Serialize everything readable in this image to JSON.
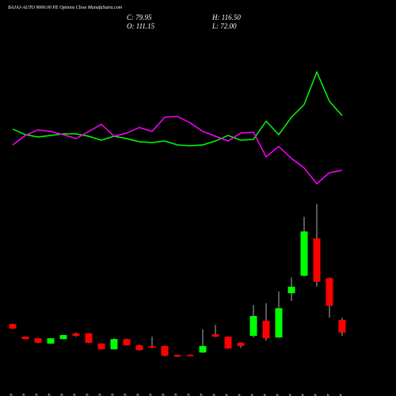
{
  "chart_data": {
    "type": "candlestick",
    "title": "BAJAJ-AUTO 9000.00 PE Options Close MunafaSutra.com",
    "stats": [
      "C: 79.95",
      "H: 116.50",
      "O: 111.15",
      "L: 72.00"
    ],
    "categories": [
      "06 Feb",
      "07 Feb",
      "10 Feb",
      "11 Feb",
      "12 Feb",
      "13 Feb",
      "14 Feb",
      "17 Feb",
      "18 Feb",
      "19 Feb",
      "20 Feb",
      "21 Feb",
      "24 Feb",
      "25 Feb",
      "27 Feb",
      "28 Feb",
      "03 Mar",
      "04 Mar",
      "05 Mar",
      "06 Mar",
      "07 Mar",
      "10 Mar",
      "11 Mar",
      "12 Mar",
      "13 Mar",
      "17 Mar",
      "18 Mar"
    ],
    "open": [
      101,
      70,
      66,
      53,
      64,
      78,
      78,
      53,
      39,
      64,
      49,
      47,
      47,
      25,
      25,
      31,
      76,
      70,
      55,
      72,
      109,
      68,
      177,
      220,
      312,
      214,
      111.15
    ],
    "high": [
      102,
      71,
      67,
      67,
      75,
      80,
      79,
      54,
      66,
      65,
      50,
      70,
      48,
      26,
      26,
      88,
      99,
      71,
      56,
      148,
      152,
      181,
      216,
      365,
      396,
      216,
      116.5
    ],
    "low": [
      89,
      63,
      54,
      52,
      63,
      70,
      54,
      38,
      38,
      48,
      36,
      42,
      22,
      20,
      22,
      30,
      69,
      40,
      43,
      68,
      60,
      67,
      158,
      218,
      193,
      117,
      72
    ],
    "close": [
      90,
      64,
      55,
      66,
      74,
      72,
      55,
      39,
      64,
      49,
      37,
      43,
      23,
      21,
      23,
      47,
      70,
      41,
      47,
      121,
      66,
      140,
      193,
      329,
      205,
      146,
      79.95
    ],
    "up_color": "#00ff00",
    "down_color": "#ff0000",
    "ylim": [
      0,
      400
    ],
    "lines_ylim": [
      0,
      200
    ],
    "lines": [
      {
        "color": "#00ff00",
        "values": [
          87,
          80,
          77,
          79,
          81,
          81,
          78,
          73,
          78,
          75,
          71,
          70,
          72,
          67,
          66,
          67,
          72,
          79,
          73,
          74,
          97,
          80,
          102,
          118,
          159,
          122,
          104
        ]
      },
      {
        "color": "#ff00ff",
        "values": [
          67,
          79,
          86,
          84,
          80,
          75,
          84,
          93,
          78,
          82,
          89,
          84,
          102,
          103,
          95,
          84,
          78,
          72,
          82,
          83,
          52,
          65,
          50,
          38,
          18,
          32,
          35
        ]
      }
    ]
  }
}
